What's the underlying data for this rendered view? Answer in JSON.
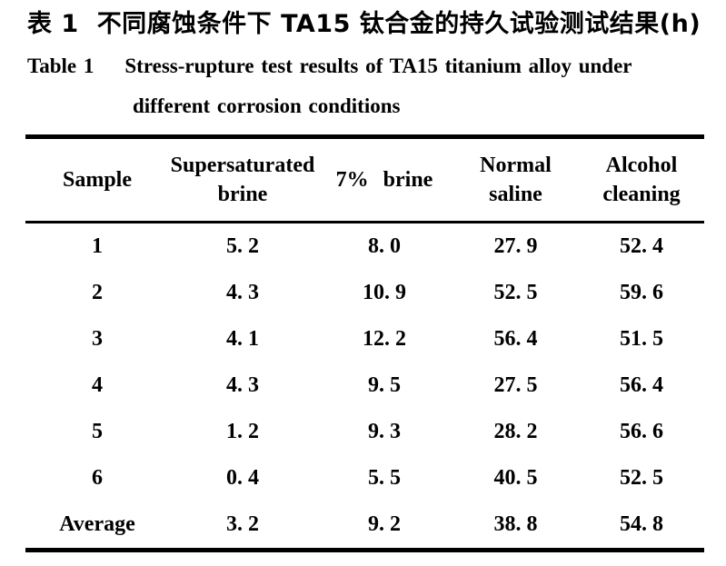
{
  "page": {
    "background_color": "#ffffff",
    "text_color": "#000000",
    "rule_color": "#000000"
  },
  "caption": {
    "zh_label": "表 1",
    "zh_title": "不同腐蚀条件下 TA15 钛合金的持久试验测试结果(h)",
    "en_label": "Table 1",
    "en_title_line1": "Stress-rupture test results of TA15 titanium alloy under",
    "en_title_line2": "different corrosion conditions"
  },
  "table": {
    "columns": [
      {
        "id": "sample",
        "lines": [
          "Sample"
        ]
      },
      {
        "id": "supersaturated-brine",
        "lines": [
          "Supersaturated",
          "brine"
        ]
      },
      {
        "id": "brine-7pct",
        "lines": [
          "7% brine"
        ]
      },
      {
        "id": "normal-saline",
        "lines": [
          "Normal",
          "saline"
        ]
      },
      {
        "id": "alcohol-cleaning",
        "lines": [
          "Alcohol",
          "cleaning"
        ]
      }
    ],
    "rows": [
      {
        "label": "1",
        "values": [
          "5. 2",
          "8. 0",
          "27. 9",
          "52. 4"
        ]
      },
      {
        "label": "2",
        "values": [
          "4. 3",
          "10. 9",
          "52. 5",
          "59. 6"
        ]
      },
      {
        "label": "3",
        "values": [
          "4. 1",
          "12. 2",
          "56. 4",
          "51. 5"
        ]
      },
      {
        "label": "4",
        "values": [
          "4. 3",
          "9. 5",
          "27. 5",
          "56. 4"
        ]
      },
      {
        "label": "5",
        "values": [
          "1. 2",
          "9. 3",
          "28. 2",
          "56. 6"
        ]
      },
      {
        "label": "6",
        "values": [
          "0. 4",
          "5. 5",
          "40. 5",
          "52. 5"
        ]
      },
      {
        "label": "Average",
        "values": [
          "3. 2",
          "9. 2",
          "38. 8",
          "54. 8"
        ]
      }
    ]
  }
}
